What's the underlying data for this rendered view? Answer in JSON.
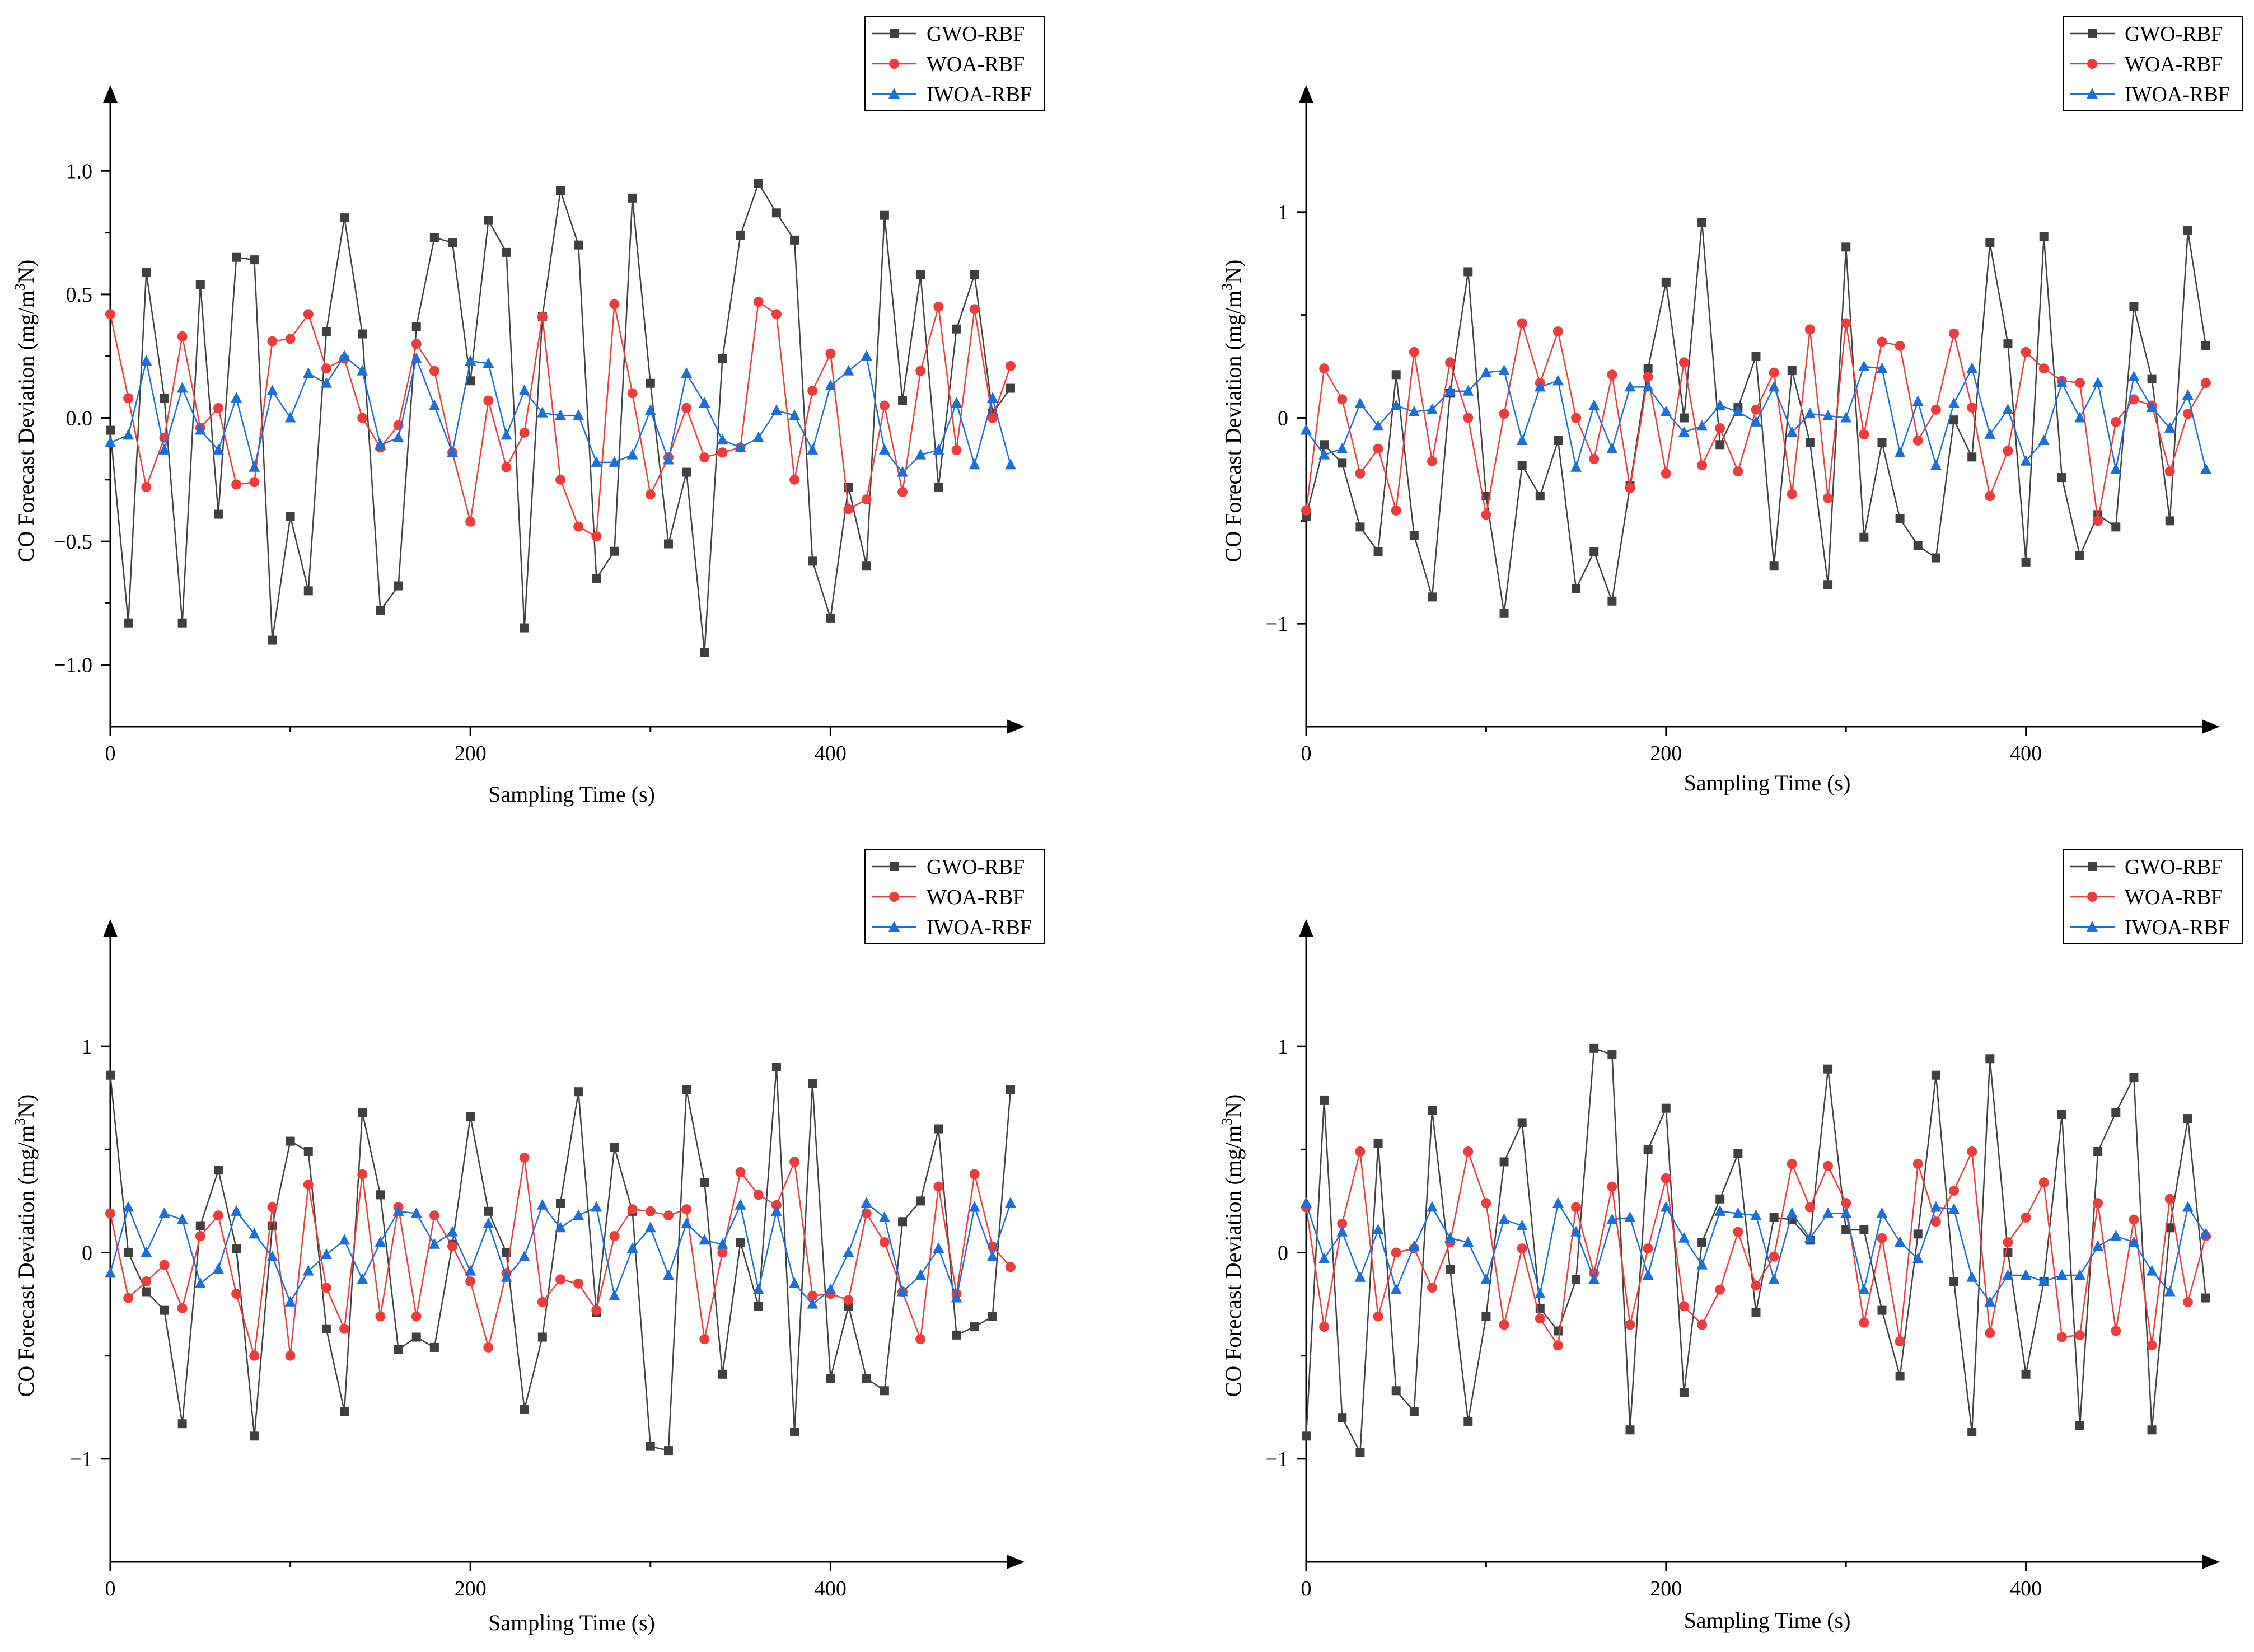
{
  "chart_data": [
    {
      "type": "line",
      "xlabel": "Sampling Time (s)",
      "ylabel_main": "CO Forecast Deviation (mg/m",
      "ylabel_sup": "3",
      "ylabel_tail": "N)",
      "xlim": [
        0,
        500
      ],
      "ylim": [
        -1.25,
        1.25
      ],
      "xticks": [
        0,
        200,
        400
      ],
      "xtick_labels": [
        "0",
        "200",
        "400"
      ],
      "yticks": [
        -1.0,
        -0.5,
        0.0,
        0.5,
        1.0
      ],
      "ytick_labels": [
        "−1.0",
        "−0.5",
        "0.0",
        "0.5",
        "1.0"
      ],
      "legend_position": "top-right",
      "x": [
        0,
        10,
        20,
        30,
        40,
        50,
        60,
        70,
        80,
        90,
        100,
        110,
        120,
        130,
        140,
        150,
        160,
        170,
        180,
        190,
        200,
        210,
        220,
        230,
        240,
        250,
        260,
        270,
        280,
        290,
        300,
        310,
        320,
        330,
        340,
        350,
        360,
        370,
        380,
        390,
        400,
        410,
        420,
        430,
        440,
        450,
        460,
        470,
        480,
        490,
        500
      ],
      "series": [
        {
          "name": "GWO-RBF",
          "color": "#404040",
          "marker": "square",
          "values": [
            -0.05,
            -0.83,
            0.59,
            0.08,
            -0.83,
            0.54,
            -0.39,
            0.65,
            0.64,
            -0.9,
            -0.4,
            -0.7,
            0.35,
            0.81,
            0.34,
            -0.78,
            -0.68,
            0.37,
            0.73,
            0.71,
            0.15,
            0.8,
            0.67,
            -0.85,
            0.41,
            0.92,
            0.7,
            -0.65,
            -0.54,
            0.89,
            0.14,
            -0.51,
            -0.22,
            -0.95,
            0.24,
            0.74,
            0.95,
            0.83,
            0.72,
            -0.58,
            -0.81,
            -0.28,
            -0.6,
            0.82,
            0.07,
            0.58,
            -0.28,
            0.36,
            0.58,
            0.02,
            0.12
          ]
        },
        {
          "name": "WOA-RBF",
          "color": "#ee3b3b",
          "marker": "circle",
          "values": [
            0.42,
            0.08,
            -0.28,
            -0.08,
            0.33,
            -0.04,
            0.04,
            -0.27,
            -0.26,
            0.31,
            0.32,
            0.42,
            0.2,
            0.24,
            0.0,
            -0.12,
            -0.03,
            0.3,
            0.19,
            -0.14,
            -0.42,
            0.07,
            -0.2,
            -0.06,
            0.41,
            -0.25,
            -0.44,
            -0.48,
            0.46,
            0.1,
            -0.31,
            -0.16,
            0.04,
            -0.16,
            -0.14,
            -0.12,
            0.47,
            0.42,
            -0.25,
            0.11,
            0.26,
            -0.37,
            -0.33,
            0.05,
            -0.3,
            0.19,
            0.45,
            -0.13,
            0.44,
            0.0,
            0.21
          ]
        },
        {
          "name": "IWOA-RBF",
          "color": "#1a6fd8",
          "marker": "triangle",
          "values": [
            -0.1,
            -0.07,
            0.23,
            -0.13,
            0.12,
            -0.05,
            -0.13,
            0.08,
            -0.2,
            0.11,
            0.0,
            0.18,
            0.14,
            0.25,
            0.19,
            -0.11,
            -0.08,
            0.24,
            0.05,
            -0.14,
            0.23,
            0.22,
            -0.07,
            0.11,
            0.02,
            0.01,
            0.01,
            -0.18,
            -0.18,
            -0.15,
            0.03,
            -0.17,
            0.18,
            0.06,
            -0.09,
            -0.12,
            -0.08,
            0.03,
            0.01,
            -0.13,
            0.13,
            0.19,
            0.25,
            -0.13,
            -0.22,
            -0.15,
            -0.13,
            0.06,
            -0.19,
            0.08,
            -0.19
          ]
        }
      ]
    },
    {
      "type": "line",
      "xlabel": "Sampling Time (s)",
      "ylabel_main": "CO Forecast Deviation (mg/m",
      "ylabel_sup": "3",
      "ylabel_tail": "N)",
      "xlim": [
        0,
        500
      ],
      "ylim": [
        -1.5,
        1.5
      ],
      "xticks": [
        0,
        200,
        400
      ],
      "xtick_labels": [
        "0",
        "200",
        "400"
      ],
      "yticks": [
        -1,
        0,
        1
      ],
      "ytick_labels": [
        "−1",
        "0",
        "1"
      ],
      "legend_position": "top-right",
      "x": [
        0,
        10,
        20,
        30,
        40,
        50,
        60,
        70,
        80,
        90,
        100,
        110,
        120,
        130,
        140,
        150,
        160,
        170,
        180,
        190,
        200,
        210,
        220,
        230,
        240,
        250,
        260,
        270,
        280,
        290,
        300,
        310,
        320,
        330,
        340,
        350,
        360,
        370,
        380,
        390,
        400,
        410,
        420,
        430,
        440,
        450,
        460,
        470,
        480,
        490,
        500
      ],
      "series": [
        {
          "name": "GWO-RBF",
          "color": "#404040",
          "marker": "square",
          "values": [
            -0.48,
            -0.13,
            -0.22,
            -0.53,
            -0.65,
            0.21,
            -0.57,
            -0.87,
            0.12,
            0.71,
            -0.38,
            -0.95,
            -0.23,
            -0.38,
            -0.11,
            -0.83,
            -0.65,
            -0.89,
            -0.33,
            0.24,
            0.66,
            0.0,
            0.95,
            -0.13,
            0.05,
            0.3,
            -0.72,
            0.23,
            -0.12,
            -0.81,
            0.83,
            -0.58,
            -0.12,
            -0.49,
            -0.62,
            -0.68,
            -0.01,
            -0.19,
            0.85,
            0.36,
            -0.7,
            0.88,
            -0.29,
            -0.67,
            -0.47,
            -0.53,
            0.54,
            0.19,
            -0.5,
            0.91,
            0.35
          ]
        },
        {
          "name": "WOA-RBF",
          "color": "#ee3b3b",
          "marker": "circle",
          "values": [
            -0.45,
            0.24,
            0.09,
            -0.27,
            -0.15,
            -0.45,
            0.32,
            -0.21,
            0.27,
            0.0,
            -0.47,
            0.02,
            0.46,
            0.17,
            0.42,
            0.0,
            -0.2,
            0.21,
            -0.34,
            0.2,
            -0.27,
            0.27,
            -0.23,
            -0.05,
            -0.26,
            0.04,
            0.22,
            -0.37,
            0.43,
            -0.39,
            0.46,
            -0.08,
            0.37,
            0.35,
            -0.11,
            0.04,
            0.41,
            0.05,
            -0.38,
            -0.16,
            0.32,
            0.24,
            0.18,
            0.17,
            -0.5,
            -0.02,
            0.09,
            0.06,
            -0.26,
            0.02,
            0.17
          ]
        },
        {
          "name": "IWOA-RBF",
          "color": "#1a6fd8",
          "marker": "triangle",
          "values": [
            -0.06,
            -0.18,
            -0.15,
            0.07,
            -0.04,
            0.06,
            0.03,
            0.04,
            0.13,
            0.13,
            0.22,
            0.23,
            -0.11,
            0.15,
            0.18,
            -0.24,
            0.06,
            -0.15,
            0.15,
            0.15,
            0.03,
            -0.07,
            -0.04,
            0.06,
            0.03,
            -0.02,
            0.15,
            -0.07,
            0.02,
            0.01,
            0.0,
            0.25,
            0.24,
            -0.17,
            0.08,
            -0.23,
            0.07,
            0.24,
            -0.08,
            0.04,
            -0.21,
            -0.11,
            0.17,
            0.0,
            0.17,
            -0.25,
            0.2,
            0.05,
            -0.05,
            0.11,
            -0.25
          ]
        }
      ]
    },
    {
      "type": "line",
      "xlabel": "Sampling Time (s)",
      "ylabel_main": "CO Forecast Deviation (mg/m",
      "ylabel_sup": "3",
      "ylabel_tail": "N)",
      "xlim": [
        0,
        500
      ],
      "ylim": [
        -1.5,
        1.5
      ],
      "xticks": [
        0,
        200,
        400
      ],
      "xtick_labels": [
        "0",
        "200",
        "400"
      ],
      "yticks": [
        -1,
        0,
        1
      ],
      "ytick_labels": [
        "−1",
        "0",
        "1"
      ],
      "legend_position": "top-right",
      "x": [
        0,
        10,
        20,
        30,
        40,
        50,
        60,
        70,
        80,
        90,
        100,
        110,
        120,
        130,
        140,
        150,
        160,
        170,
        180,
        190,
        200,
        210,
        220,
        230,
        240,
        250,
        260,
        270,
        280,
        290,
        300,
        310,
        320,
        330,
        340,
        350,
        360,
        370,
        380,
        390,
        400,
        410,
        420,
        430,
        440,
        450,
        460,
        470,
        480,
        490,
        500
      ],
      "series": [
        {
          "name": "GWO-RBF",
          "color": "#404040",
          "marker": "square",
          "values": [
            0.86,
            0.0,
            -0.19,
            -0.28,
            -0.83,
            0.13,
            0.4,
            0.02,
            -0.89,
            0.13,
            0.54,
            0.49,
            -0.37,
            -0.77,
            0.68,
            0.28,
            -0.47,
            -0.41,
            -0.46,
            0.04,
            0.66,
            0.2,
            0.0,
            -0.76,
            -0.41,
            0.24,
            0.78,
            -0.29,
            0.51,
            0.2,
            -0.94,
            -0.96,
            0.79,
            0.34,
            -0.59,
            0.05,
            -0.26,
            0.9,
            -0.87,
            0.82,
            -0.61,
            -0.26,
            -0.61,
            -0.67,
            0.15,
            0.25,
            0.6,
            -0.4,
            -0.36,
            -0.31,
            0.79
          ]
        },
        {
          "name": "WOA-RBF",
          "color": "#ee3b3b",
          "marker": "circle",
          "values": [
            0.19,
            -0.22,
            -0.14,
            -0.06,
            -0.27,
            0.08,
            0.18,
            -0.2,
            -0.5,
            0.22,
            -0.5,
            0.33,
            -0.17,
            -0.37,
            0.38,
            -0.31,
            0.22,
            -0.31,
            0.18,
            0.03,
            -0.14,
            -0.46,
            -0.1,
            0.46,
            -0.24,
            -0.13,
            -0.15,
            -0.28,
            0.08,
            0.21,
            0.2,
            0.18,
            0.21,
            -0.42,
            0.0,
            0.39,
            0.28,
            0.23,
            0.44,
            -0.21,
            -0.2,
            -0.23,
            0.19,
            0.05,
            -0.19,
            -0.42,
            0.32,
            -0.2,
            0.38,
            0.03,
            -0.07
          ]
        },
        {
          "name": "IWOA-RBF",
          "color": "#1a6fd8",
          "marker": "triangle",
          "values": [
            -0.1,
            0.22,
            0.0,
            0.19,
            0.16,
            -0.15,
            -0.08,
            0.2,
            0.09,
            -0.02,
            -0.24,
            -0.09,
            -0.01,
            0.06,
            -0.13,
            0.05,
            0.2,
            0.19,
            0.04,
            0.1,
            -0.09,
            0.14,
            -0.12,
            -0.02,
            0.23,
            0.12,
            0.18,
            0.22,
            -0.21,
            0.02,
            0.12,
            -0.11,
            0.14,
            0.06,
            0.04,
            0.23,
            -0.18,
            0.2,
            -0.15,
            -0.25,
            -0.18,
            0.0,
            0.24,
            0.17,
            -0.19,
            -0.11,
            0.02,
            -0.22,
            0.22,
            -0.02,
            0.24
          ]
        }
      ]
    },
    {
      "type": "line",
      "xlabel": "Sampling Time (s)",
      "ylabel_main": "CO Forecast Deviation (mg/m",
      "ylabel_sup": "3",
      "ylabel_tail": "N)",
      "xlim": [
        0,
        500
      ],
      "ylim": [
        -1.5,
        1.5
      ],
      "xticks": [
        0,
        200,
        400
      ],
      "xtick_labels": [
        "0",
        "200",
        "400"
      ],
      "yticks": [
        -1,
        0,
        1
      ],
      "ytick_labels": [
        "−1",
        "0",
        "1"
      ],
      "legend_position": "top-right",
      "x": [
        0,
        10,
        20,
        30,
        40,
        50,
        60,
        70,
        80,
        90,
        100,
        110,
        120,
        130,
        140,
        150,
        160,
        170,
        180,
        190,
        200,
        210,
        220,
        230,
        240,
        250,
        260,
        270,
        280,
        290,
        300,
        310,
        320,
        330,
        340,
        350,
        360,
        370,
        380,
        390,
        400,
        410,
        420,
        430,
        440,
        450,
        460,
        470,
        480,
        490,
        500
      ],
      "series": [
        {
          "name": "GWO-RBF",
          "color": "#404040",
          "marker": "square",
          "values": [
            -0.89,
            0.74,
            -0.8,
            -0.97,
            0.53,
            -0.67,
            -0.77,
            0.69,
            -0.08,
            -0.82,
            -0.31,
            0.44,
            0.63,
            -0.27,
            -0.38,
            -0.13,
            0.99,
            0.96,
            -0.86,
            0.5,
            0.7,
            -0.68,
            0.05,
            0.26,
            0.48,
            -0.29,
            0.17,
            0.16,
            0.06,
            0.89,
            0.11,
            0.11,
            -0.28,
            -0.6,
            0.09,
            0.86,
            -0.14,
            -0.87,
            0.94,
            0.0,
            -0.59,
            -0.14,
            0.67,
            -0.84,
            0.49,
            0.68,
            0.85,
            -0.86,
            0.12,
            0.65,
            -0.22
          ]
        },
        {
          "name": "WOA-RBF",
          "color": "#ee3b3b",
          "marker": "circle",
          "values": [
            0.22,
            -0.36,
            0.14,
            0.49,
            -0.31,
            0.0,
            0.02,
            -0.17,
            0.05,
            0.49,
            0.24,
            -0.35,
            0.02,
            -0.32,
            -0.45,
            0.22,
            -0.1,
            0.32,
            -0.35,
            0.02,
            0.36,
            -0.26,
            -0.35,
            -0.18,
            0.1,
            -0.16,
            -0.02,
            0.43,
            0.22,
            0.42,
            0.24,
            -0.34,
            0.07,
            -0.43,
            0.43,
            0.15,
            0.3,
            0.49,
            -0.39,
            0.05,
            0.17,
            0.34,
            -0.41,
            -0.4,
            0.24,
            -0.38,
            0.16,
            -0.45,
            0.26,
            -0.24,
            0.08
          ]
        },
        {
          "name": "IWOA-RBF",
          "color": "#1a6fd8",
          "marker": "triangle",
          "values": [
            0.24,
            -0.03,
            0.1,
            -0.12,
            0.11,
            -0.18,
            0.03,
            0.22,
            0.07,
            0.05,
            -0.13,
            0.16,
            0.13,
            -0.2,
            0.24,
            0.1,
            -0.13,
            0.16,
            0.17,
            -0.11,
            0.22,
            0.07,
            -0.06,
            0.2,
            0.19,
            0.18,
            -0.13,
            0.19,
            0.07,
            0.19,
            0.19,
            -0.18,
            0.19,
            0.05,
            -0.03,
            0.22,
            0.21,
            -0.12,
            -0.24,
            -0.11,
            -0.11,
            -0.14,
            -0.11,
            -0.11,
            0.03,
            0.08,
            0.05,
            -0.09,
            -0.19,
            0.22,
            0.09
          ]
        }
      ]
    }
  ]
}
